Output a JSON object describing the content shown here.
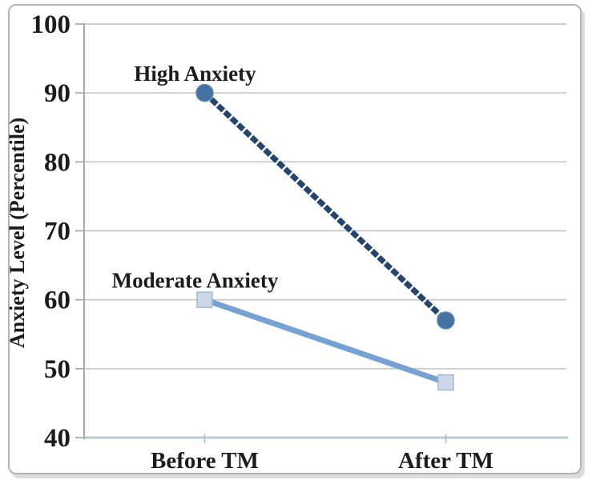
{
  "chart_data": {
    "type": "line",
    "categories": [
      "Before TM",
      "After TM"
    ],
    "series": [
      {
        "name": "High Anxiety",
        "values": [
          90,
          57
        ],
        "line_color": "#24466e",
        "line_style": "beaded",
        "marker": "circle",
        "marker_color": "#44719f",
        "marker_edge_color": "#5a87b8"
      },
      {
        "name": "Moderate Anxiety",
        "values": [
          60,
          48
        ],
        "line_color": "#76a1d5",
        "line_style": "solid",
        "marker": "square",
        "marker_color": "#ccd8ea",
        "marker_edge_color": "#a3b8d2"
      }
    ],
    "title": "",
    "xlabel": "",
    "ylabel": "Anxiety Level (Percentile)",
    "ylim": [
      40,
      100
    ],
    "ytick_step": 10,
    "ytick_labels": [
      "40",
      "50",
      "60",
      "70",
      "80",
      "90",
      "100"
    ],
    "grid": true,
    "legend_position": "inline-labels-above-first-point"
  },
  "styles": {
    "grid_color": "#c7c7c7",
    "axis_color": "#a8a8a8",
    "baseline_color": "#b7cbd7",
    "x_tick_color": "#a6bcca",
    "text_color": "#1c1c1c",
    "card_border_color": "#b3b3b3",
    "card_shadow_color": "#dcdcdc",
    "background_color": "#ffffff"
  }
}
